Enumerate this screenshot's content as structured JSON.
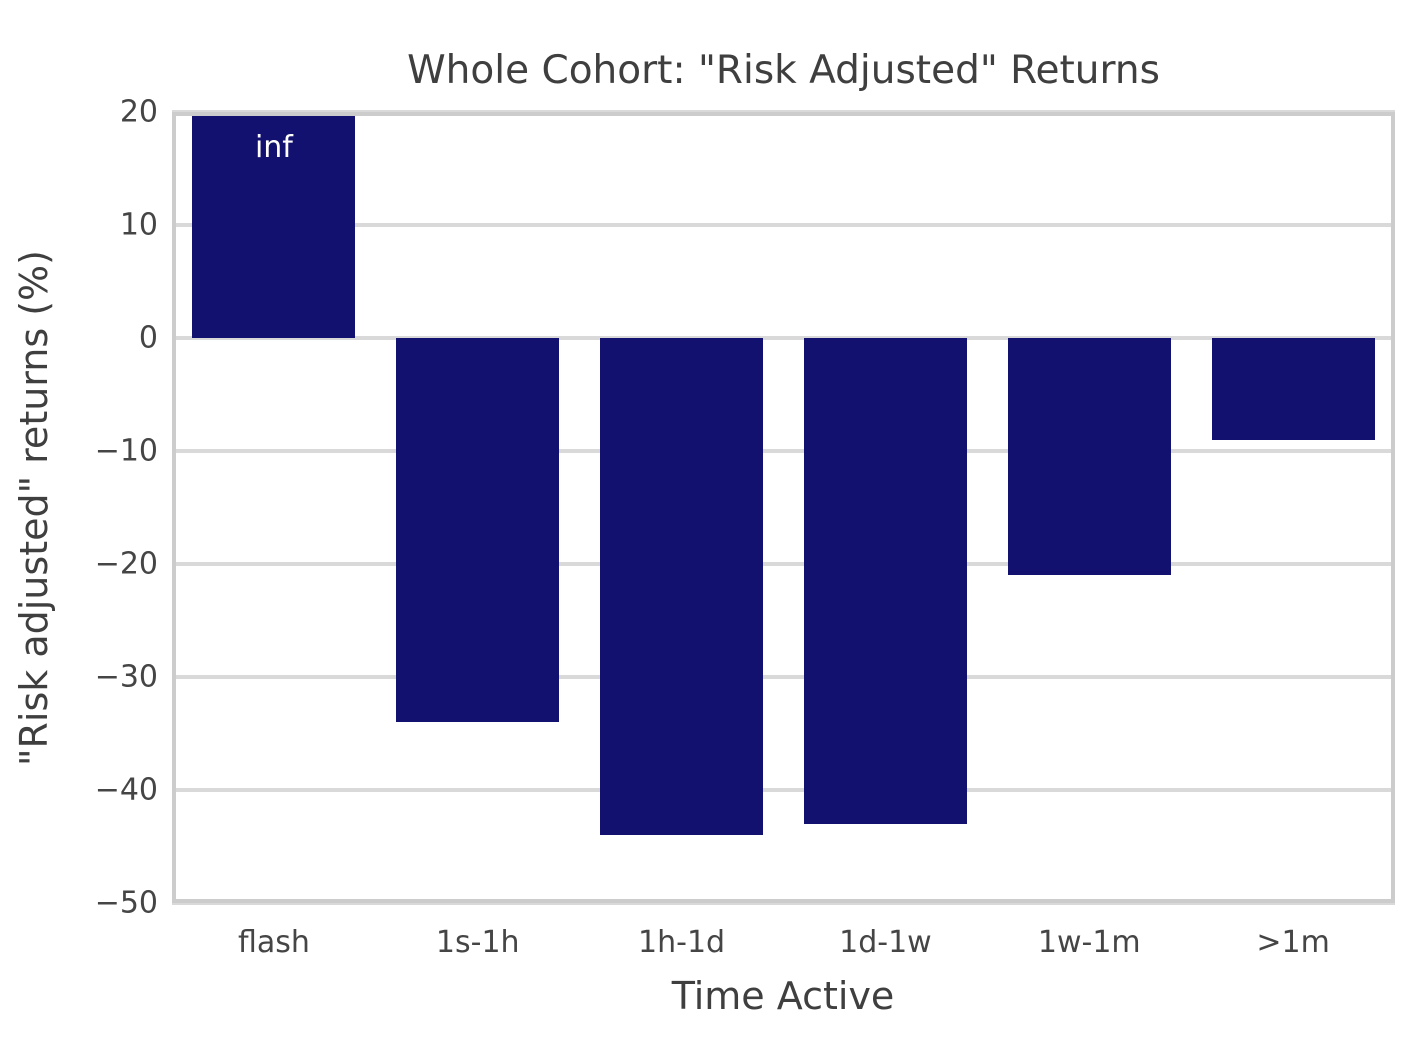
{
  "chart_data": {
    "type": "bar",
    "title": "Whole Cohort: \"Risk Adjusted\" Returns",
    "xlabel": "Time Active",
    "ylabel": "\"Risk adjusted\" returns (%)",
    "categories": [
      "flash",
      "1s-1h",
      "1h-1d",
      "1d-1w",
      "1w-1m",
      ">1m"
    ],
    "values": [
      "inf",
      -34,
      -44,
      -43,
      -21,
      -9
    ],
    "plotted_values": [
      20,
      -34,
      -44,
      -43,
      -21,
      -9
    ],
    "bar_labels": [
      "inf",
      "",
      "",
      "",
      "",
      ""
    ],
    "ylim": [
      -50,
      20
    ],
    "yticks": [
      20,
      10,
      0,
      -10,
      -20,
      -30,
      -40,
      -50
    ],
    "grid": "horizontal",
    "legend": "none",
    "colors": {
      "bar": "#131170",
      "bar_label": "#ffffff",
      "grid_line": "#d9d9d9",
      "axis_spine": "#cccccc",
      "text": "#3f3f3f",
      "background": "#ffffff"
    }
  }
}
